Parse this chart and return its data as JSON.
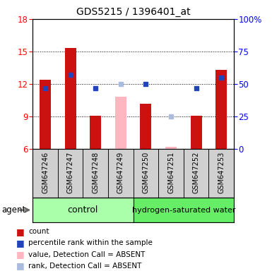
{
  "title": "GDS5215 / 1396401_at",
  "samples": [
    "GSM647246",
    "GSM647247",
    "GSM647248",
    "GSM647249",
    "GSM647250",
    "GSM647251",
    "GSM647252",
    "GSM647253"
  ],
  "red_values": [
    12.4,
    15.3,
    9.1,
    null,
    10.2,
    null,
    9.1,
    13.3
  ],
  "pink_values": [
    null,
    null,
    null,
    10.8,
    null,
    6.2,
    null,
    null
  ],
  "blue_values": [
    47,
    57,
    47,
    null,
    50,
    null,
    47,
    55
  ],
  "lightblue_values": [
    null,
    null,
    null,
    50,
    null,
    25,
    null,
    null
  ],
  "ylim_left": [
    6,
    18
  ],
  "ylim_right": [
    0,
    100
  ],
  "yticks_left": [
    6,
    9,
    12,
    15,
    18
  ],
  "yticks_right": [
    0,
    25,
    50,
    75,
    100
  ],
  "ytick_labels_right": [
    "0",
    "25",
    "50",
    "75",
    "100%"
  ],
  "groups": [
    {
      "label": "control",
      "span": [
        0,
        4
      ],
      "color": "#aaffaa"
    },
    {
      "label": "hydrogen-saturated water",
      "span": [
        4,
        8
      ],
      "color": "#66ee66"
    }
  ],
  "agent_label": "agent",
  "red_color": "#cc1111",
  "pink_color": "#ffb6c1",
  "blue_color": "#2244bb",
  "lightblue_color": "#aabbdd",
  "bar_width": 0.45,
  "bg_color": "#cccccc",
  "legend_items": [
    {
      "color": "#cc1111",
      "label": "count"
    },
    {
      "color": "#2244bb",
      "label": "percentile rank within the sample"
    },
    {
      "color": "#ffb6c1",
      "label": "value, Detection Call = ABSENT"
    },
    {
      "color": "#aabbdd",
      "label": "rank, Detection Call = ABSENT"
    }
  ]
}
